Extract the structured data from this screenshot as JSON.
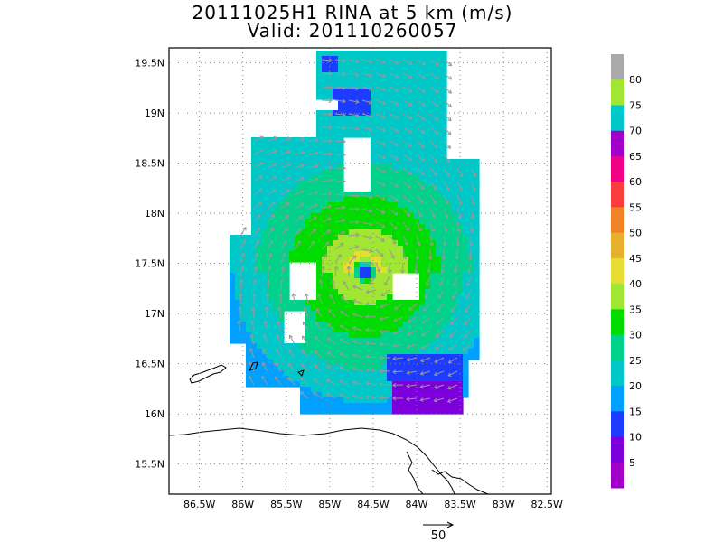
{
  "title": {
    "line1": "20111025H1 RINA at 5 km (m/s)",
    "line2": "Valid: 201110260057"
  },
  "axes": {
    "lat_labels": [
      "19.5N",
      "19N",
      "18.5N",
      "18N",
      "17.5N",
      "17N",
      "16.5N",
      "16N",
      "15.5N"
    ],
    "lat_values": [
      19.5,
      19,
      18.5,
      18,
      17.5,
      17,
      16.5,
      16,
      15.5
    ],
    "lon_labels": [
      "86.5W",
      "86W",
      "85.5W",
      "85W",
      "84.5W",
      "84W",
      "83.5W",
      "83W",
      "82.5W"
    ],
    "lon_values": [
      -86.5,
      -86,
      -85.5,
      -85,
      -84.5,
      -84,
      -83.5,
      -83,
      -82.5
    ],
    "lon_range": [
      -86.85,
      -82.45
    ],
    "lat_range": [
      15.2,
      19.65
    ],
    "grid": "dotted"
  },
  "colorbar": {
    "labels": [
      "5",
      "10",
      "15",
      "20",
      "25",
      "30",
      "35",
      "40",
      "45",
      "50",
      "55",
      "60",
      "65",
      "70",
      "75",
      "80"
    ],
    "colors": [
      "#a000c8",
      "#7d00dc",
      "#1e3cff",
      "#00a0ff",
      "#00c8c8",
      "#00d28c",
      "#00dc00",
      "#a0e632",
      "#e6dc32",
      "#e6af2d",
      "#f08228",
      "#fa3c3c",
      "#f00082",
      "#a000c8",
      "#00c8c8",
      "#a0e632",
      "#aaaaaa"
    ]
  },
  "storm": {
    "name": "RINA",
    "center_lon": -84.6,
    "center_lat": 17.42
  },
  "vector_key": {
    "label": "50"
  }
}
